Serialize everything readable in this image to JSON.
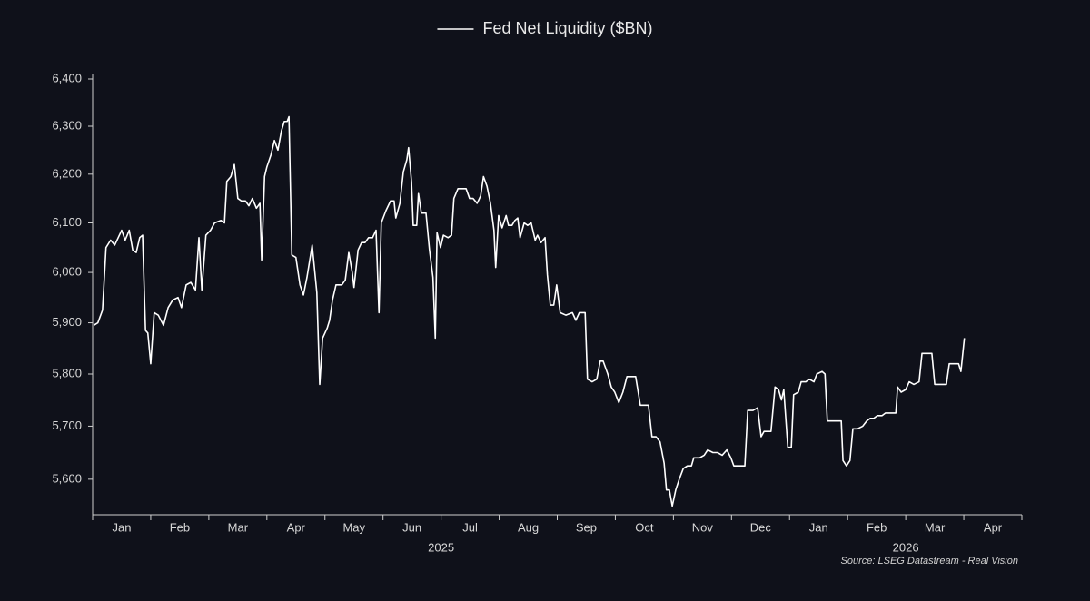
{
  "chart_data": {
    "type": "line",
    "log_y": true,
    "grid": false,
    "legend": "top",
    "series": [
      {
        "name": "Fed Net Liquidity ($BN)",
        "color": "#ffffff",
        "x": [
          0.02,
          0.09,
          0.17,
          0.23,
          0.31,
          0.38,
          0.44,
          0.5,
          0.56,
          0.63,
          0.69,
          0.75,
          0.81,
          0.86,
          0.91,
          0.95,
          1.0,
          1.06,
          1.13,
          1.22,
          1.3,
          1.38,
          1.47,
          1.53,
          1.61,
          1.69,
          1.77,
          1.83,
          1.88,
          1.95,
          2.03,
          2.1,
          2.21,
          2.27,
          2.31,
          2.38,
          2.44,
          2.5,
          2.56,
          2.63,
          2.69,
          2.75,
          2.82,
          2.88,
          2.91,
          2.96,
          3.0,
          3.07,
          3.13,
          3.19,
          3.25,
          3.3,
          3.35,
          3.38,
          3.43,
          3.5,
          3.57,
          3.63,
          3.69,
          3.78,
          3.86,
          3.91,
          3.96,
          4.04,
          4.08,
          4.13,
          4.19,
          4.29,
          4.35,
          4.41,
          4.47,
          4.5,
          4.57,
          4.63,
          4.69,
          4.75,
          4.82,
          4.88,
          4.93,
          4.97,
          5.05,
          5.13,
          5.19,
          5.22,
          5.29,
          5.35,
          5.41,
          5.44,
          5.49,
          5.52,
          5.58,
          5.61,
          5.66,
          5.74,
          5.8,
          5.86,
          5.9,
          5.93,
          5.99,
          6.04,
          6.12,
          6.18,
          6.22,
          6.29,
          6.37,
          6.43,
          6.49,
          6.55,
          6.62,
          6.68,
          6.73,
          6.79,
          6.85,
          6.91,
          6.94,
          6.99,
          7.05,
          7.12,
          7.16,
          7.22,
          7.27,
          7.32,
          7.36,
          7.43,
          7.49,
          7.55,
          7.62,
          7.66,
          7.72,
          7.79,
          7.83,
          7.88,
          7.94,
          7.99,
          8.05,
          8.15,
          8.26,
          8.32,
          8.38,
          8.48,
          8.52,
          8.6,
          8.68,
          8.74,
          8.79,
          8.87,
          8.93,
          8.99,
          9.06,
          9.13,
          9.2,
          9.27,
          9.35,
          9.43,
          9.51,
          9.57,
          9.63,
          9.7,
          9.77,
          9.84,
          9.88,
          9.93,
          9.98,
          10.04,
          10.1,
          10.17,
          10.24,
          10.31,
          10.35,
          10.45,
          10.53,
          10.59,
          10.68,
          10.76,
          10.84,
          10.92,
          10.99,
          11.04,
          11.15,
          11.23,
          11.28,
          11.37,
          11.45,
          11.51,
          11.56,
          11.64,
          11.68,
          11.75,
          11.81,
          11.86,
          11.9,
          11.97,
          12.03,
          12.07,
          12.15,
          12.2,
          12.28,
          12.34,
          12.42,
          12.47,
          12.56,
          12.61,
          12.65,
          12.73,
          12.82,
          12.89,
          12.92,
          12.98,
          13.04,
          13.09,
          13.17,
          13.26,
          13.33,
          13.39,
          13.45,
          13.51,
          13.59,
          13.65,
          13.73,
          13.83,
          13.86,
          13.92,
          14.0,
          14.06,
          14.14,
          14.23,
          14.28,
          14.36,
          14.45,
          14.5,
          14.59,
          14.7,
          14.75,
          14.83,
          14.91,
          14.95,
          15.01
        ],
        "values": [
          5895,
          5900,
          5925,
          6050,
          6065,
          6055,
          6070,
          6085,
          6065,
          6085,
          6045,
          6040,
          6070,
          6075,
          5885,
          5880,
          5820,
          5920,
          5915,
          5895,
          5930,
          5945,
          5950,
          5930,
          5975,
          5980,
          5965,
          6070,
          5965,
          6075,
          6085,
          6100,
          6105,
          6100,
          6185,
          6195,
          6220,
          6150,
          6145,
          6145,
          6135,
          6150,
          6130,
          6140,
          6025,
          6195,
          6215,
          6240,
          6270,
          6250,
          6290,
          6310,
          6310,
          6320,
          6035,
          6030,
          5975,
          5955,
          5990,
          6055,
          5960,
          5780,
          5870,
          5890,
          5905,
          5945,
          5975,
          5975,
          5985,
          6040,
          6000,
          5970,
          6045,
          6060,
          6060,
          6070,
          6070,
          6085,
          5920,
          6100,
          6125,
          6145,
          6145,
          6110,
          6140,
          6205,
          6230,
          6255,
          6185,
          6095,
          6095,
          6160,
          6120,
          6120,
          6045,
          5990,
          5870,
          6080,
          6050,
          6075,
          6070,
          6075,
          6150,
          6170,
          6170,
          6170,
          6150,
          6150,
          6140,
          6155,
          6195,
          6175,
          6140,
          6085,
          6010,
          6115,
          6090,
          6115,
          6095,
          6095,
          6105,
          6110,
          6070,
          6100,
          6095,
          6100,
          6065,
          6075,
          6060,
          6070,
          5995,
          5935,
          5935,
          5975,
          5920,
          5915,
          5920,
          5905,
          5920,
          5920,
          5790,
          5785,
          5790,
          5825,
          5825,
          5800,
          5775,
          5765,
          5745,
          5765,
          5795,
          5795,
          5795,
          5740,
          5740,
          5740,
          5680,
          5680,
          5670,
          5630,
          5580,
          5580,
          5550,
          5580,
          5600,
          5620,
          5625,
          5625,
          5640,
          5640,
          5645,
          5655,
          5650,
          5650,
          5645,
          5655,
          5640,
          5625,
          5625,
          5625,
          5730,
          5730,
          5735,
          5680,
          5690,
          5690,
          5690,
          5775,
          5770,
          5750,
          5770,
          5660,
          5660,
          5760,
          5765,
          5785,
          5785,
          5790,
          5785,
          5800,
          5805,
          5800,
          5710,
          5710,
          5710,
          5710,
          5635,
          5625,
          5635,
          5695,
          5695,
          5700,
          5710,
          5715,
          5715,
          5720,
          5720,
          5725,
          5725,
          5725,
          5775,
          5765,
          5770,
          5785,
          5780,
          5785,
          5840,
          5840,
          5840,
          5780,
          5780,
          5780,
          5820,
          5820,
          5820,
          5805,
          5870
        ]
      }
    ],
    "xlim": [
      0,
      16
    ],
    "xticks": [
      0,
      1,
      2,
      3,
      4,
      5,
      6,
      7,
      8,
      9,
      10,
      11,
      12,
      13,
      14,
      15,
      16
    ],
    "month_labels": [
      "Jan",
      "Feb",
      "Mar",
      "Apr",
      "May",
      "Jun",
      "Jul",
      "Aug",
      "Sep",
      "Oct",
      "Nov",
      "Dec",
      "Jan",
      "Feb",
      "Mar",
      "Apr"
    ],
    "year_labels": [
      "2025",
      "2026"
    ],
    "ylim": [
      5534,
      6400
    ],
    "yticks": [
      {
        "value": 5600,
        "label": "5,600"
      },
      {
        "value": 5700,
        "label": "5,700"
      },
      {
        "value": 5800,
        "label": "5,800"
      },
      {
        "value": 5900,
        "label": "5,900"
      },
      {
        "value": 6000,
        "label": "6,000"
      },
      {
        "value": 6100,
        "label": "6,100"
      },
      {
        "value": 6200,
        "label": "6,200"
      },
      {
        "value": 6300,
        "label": "6,300"
      },
      {
        "value": 6400,
        "label": "6,400"
      }
    ],
    "source": "Source: LSEG Datastream - Real Vision"
  }
}
